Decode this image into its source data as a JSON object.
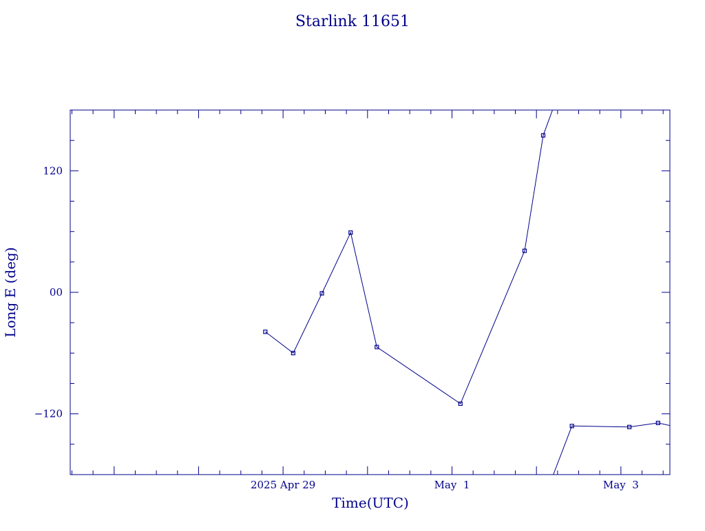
{
  "chart_data": {
    "type": "line",
    "title": "Starlink 11651",
    "xlabel": "Time(UTC)",
    "ylabel": "Long E (deg)",
    "x_ticks": [
      {
        "label": "2025 Apr 29",
        "day": 29
      },
      {
        "label": "May  1",
        "day": 31
      },
      {
        "label": "May  3",
        "day": 33
      }
    ],
    "y_ticks": [
      {
        "label": "120",
        "value": 120
      },
      {
        "label": "00",
        "value": 0
      },
      {
        "label": "−120",
        "value": -120
      }
    ],
    "xlim_days": [
      26.48,
      33.58
    ],
    "ylim": [
      -180,
      180
    ],
    "series": [
      {
        "points": [
          {
            "day": 28.79,
            "lon": -39
          },
          {
            "day": 29.12,
            "lon": -60
          },
          {
            "day": 29.46,
            "lon": -1
          },
          {
            "day": 29.8,
            "lon": 59
          },
          {
            "day": 30.11,
            "lon": -54
          },
          {
            "day": 31.1,
            "lon": -110
          },
          {
            "day": 31.86,
            "lon": 41
          },
          {
            "day": 32.08,
            "lon": 155
          },
          {
            "day": 32.19,
            "lon": 180
          }
        ]
      },
      {
        "points": [
          {
            "day": 32.2,
            "lon": -180
          },
          {
            "day": 32.42,
            "lon": -132
          },
          {
            "day": 33.1,
            "lon": -133
          },
          {
            "day": 33.44,
            "lon": -129
          },
          {
            "day": 34.1,
            "lon": -141
          }
        ]
      }
    ],
    "colors": {
      "axis": "#00008b",
      "line": "#00008b"
    }
  }
}
